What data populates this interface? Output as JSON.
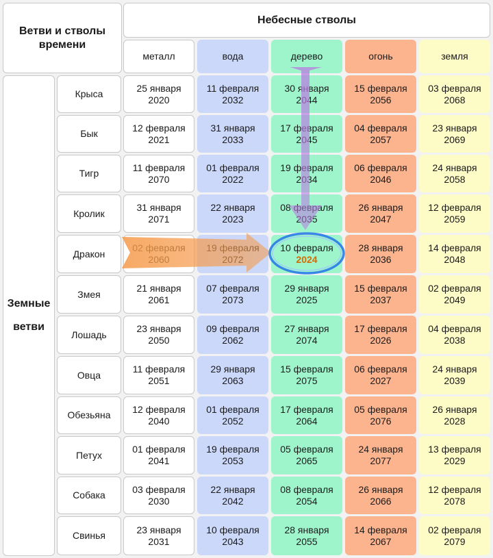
{
  "header": {
    "corner_title": "Ветви и стволы времени",
    "stems_title": "Небесные стволы",
    "branches_title": "Земные ветви"
  },
  "elements": [
    "металл",
    "вода",
    "дерево",
    "огонь",
    "земля"
  ],
  "element_colors": [
    "#ffffff",
    "#cbd8fa",
    "#9ef5cc",
    "#fcb48e",
    "#fdfbc6"
  ],
  "rows": [
    {
      "animal": "Крыса",
      "dates": [
        [
          "25 января",
          "2020"
        ],
        [
          "11 февраля",
          "2032"
        ],
        [
          "30 января",
          "2044"
        ],
        [
          "15 февраля",
          "2056"
        ],
        [
          "03 февраля",
          "2068"
        ]
      ]
    },
    {
      "animal": "Бык",
      "dates": [
        [
          "12 февраля",
          "2021"
        ],
        [
          "31 января",
          "2033"
        ],
        [
          "17 февраля",
          "2045"
        ],
        [
          "04 февраля",
          "2057"
        ],
        [
          "23 января",
          "2069"
        ]
      ]
    },
    {
      "animal": "Тигр",
      "dates": [
        [
          "11 февраля",
          "2070"
        ],
        [
          "01 февраля",
          "2022"
        ],
        [
          "19 февраля",
          "2034"
        ],
        [
          "06 февраля",
          "2046"
        ],
        [
          "24 января",
          "2058"
        ]
      ]
    },
    {
      "animal": "Кролик",
      "dates": [
        [
          "31 января",
          "2071"
        ],
        [
          "22 января",
          "2023"
        ],
        [
          "08 февраля",
          "2035"
        ],
        [
          "26 января",
          "2047"
        ],
        [
          "12 февраля",
          "2059"
        ]
      ]
    },
    {
      "animal": "Дракон",
      "dates": [
        [
          "02 февраля",
          "2060"
        ],
        [
          "19 февраля",
          "2072"
        ],
        [
          "10 февраля",
          "2024"
        ],
        [
          "28 января",
          "2036"
        ],
        [
          "14 февраля",
          "2048"
        ]
      ]
    },
    {
      "animal": "Змея",
      "dates": [
        [
          "21 января",
          "2061"
        ],
        [
          "07 февраля",
          "2073"
        ],
        [
          "29 января",
          "2025"
        ],
        [
          "15 февраля",
          "2037"
        ],
        [
          "02 февраля",
          "2049"
        ]
      ]
    },
    {
      "animal": "Лошадь",
      "dates": [
        [
          "23 января",
          "2050"
        ],
        [
          "09 февраля",
          "2062"
        ],
        [
          "27 января",
          "2074"
        ],
        [
          "17 февраля",
          "2026"
        ],
        [
          "04 февраля",
          "2038"
        ]
      ]
    },
    {
      "animal": "Овца",
      "dates": [
        [
          "11 февраля",
          "2051"
        ],
        [
          "29 января",
          "2063"
        ],
        [
          "15 февраля",
          "2075"
        ],
        [
          "06 февраля",
          "2027"
        ],
        [
          "24 января",
          "2039"
        ]
      ]
    },
    {
      "animal": "Обезьяна",
      "dates": [
        [
          "12 февраля",
          "2040"
        ],
        [
          "01 февраля",
          "2052"
        ],
        [
          "17 февраля",
          "2064"
        ],
        [
          "05 февраля",
          "2076"
        ],
        [
          "26 января",
          "2028"
        ]
      ]
    },
    {
      "animal": "Петух",
      "dates": [
        [
          "01 февраля",
          "2041"
        ],
        [
          "19 февраля",
          "2053"
        ],
        [
          "05 февраля",
          "2065"
        ],
        [
          "24 января",
          "2077"
        ],
        [
          "13 февраля",
          "2029"
        ]
      ]
    },
    {
      "animal": "Собака",
      "dates": [
        [
          "03 февраля",
          "2030"
        ],
        [
          "22 января",
          "2042"
        ],
        [
          "08 февраля",
          "2054"
        ],
        [
          "26 января",
          "2066"
        ],
        [
          "12 февраля",
          "2078"
        ]
      ]
    },
    {
      "animal": "Свинья",
      "dates": [
        [
          "23 января",
          "2031"
        ],
        [
          "10 февраля",
          "2043"
        ],
        [
          "28 января",
          "2055"
        ],
        [
          "14 февраля",
          "2067"
        ],
        [
          "02 февраля",
          "2079"
        ]
      ]
    }
  ],
  "highlight": {
    "row": 4,
    "col": 2
  }
}
